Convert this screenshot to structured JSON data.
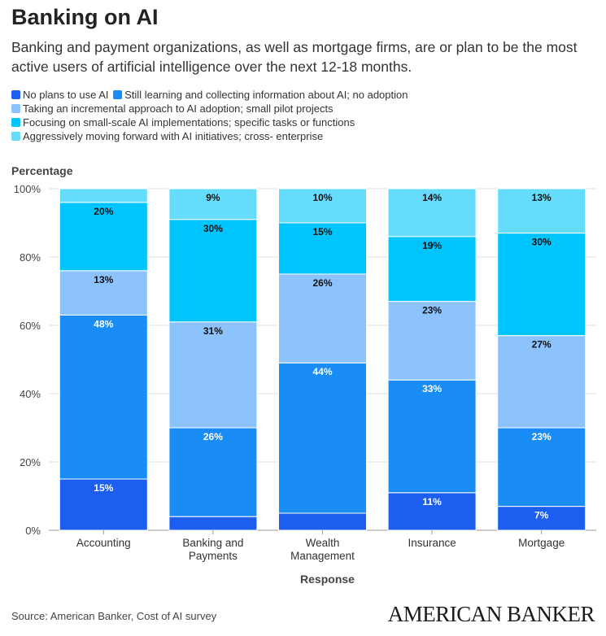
{
  "title": "Banking on AI",
  "subtitle": "Banking and payment organizations, as well as mortgage firms, are or plan to be the most active users of artificial intelligence over the next 12-18 months.",
  "source": "Source: American Banker, Cost of AI survey",
  "brand": "AMERICAN BANKER",
  "chart_data": {
    "type": "bar",
    "stacked": true,
    "ylabel": "Percentage",
    "xlabel": "Response",
    "ylim": [
      0,
      100
    ],
    "yticks": [
      "0%",
      "20%",
      "40%",
      "60%",
      "80%",
      "100%"
    ],
    "categories": [
      "Accounting",
      "Banking and Payments",
      "Wealth Management",
      "Insurance",
      "Mortgage"
    ],
    "series": [
      {
        "name": "No plans to use AI",
        "color": "#1c5ef0",
        "values": [
          15,
          4,
          5,
          11,
          7
        ],
        "labels": [
          "15%",
          "",
          "",
          "11%",
          "7%"
        ],
        "label_color": "#ffffff"
      },
      {
        "name": "Still learning and collecting information about AI; no adoption",
        "color": "#1a8cf5",
        "values": [
          48,
          26,
          44,
          33,
          23
        ],
        "labels": [
          "48%",
          "26%",
          "44%",
          "33%",
          "23%"
        ],
        "label_color": "#ffffff"
      },
      {
        "name": "Taking an incremental approach to AI adoption; small pilot projects",
        "color": "#8cc3fc",
        "values": [
          13,
          31,
          26,
          23,
          27
        ],
        "labels": [
          "13%",
          "31%",
          "26%",
          "23%",
          "27%"
        ],
        "label_color": "#111111"
      },
      {
        "name": "Focusing on small-scale AI implementations; specific tasks or functions",
        "color": "#00c4fc",
        "values": [
          20,
          30,
          15,
          19,
          30
        ],
        "labels": [
          "20%",
          "30%",
          "15%",
          "19%",
          "30%"
        ],
        "label_color": "#111111"
      },
      {
        "name": "Aggressively moving forward with AI initiatives; cross- enterprise",
        "color": "#66dcfc",
        "values": [
          4,
          9,
          10,
          14,
          13
        ],
        "labels": [
          "",
          "9%",
          "10%",
          "14%",
          "13%"
        ],
        "label_color": "#111111"
      }
    ],
    "legend_position": "top-left",
    "grid": true
  }
}
